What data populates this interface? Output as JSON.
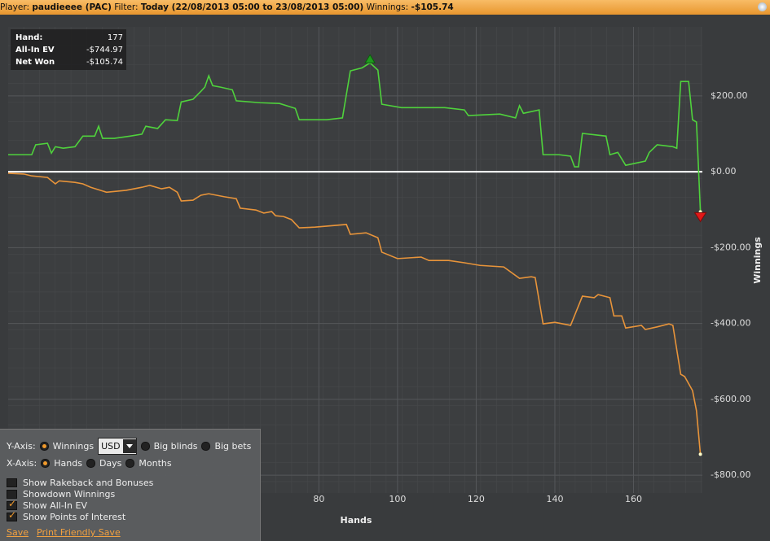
{
  "header": {
    "player_label": "Player:",
    "player": "paudieeee (PAC)",
    "filter_label": "Filter:",
    "filter": "Today (22/08/2013 05:00 to 23/08/2013 05:00)",
    "winnings_label": "Winnings:",
    "winnings": "-$105.74"
  },
  "info_box": {
    "hand_label": "Hand:",
    "hand": "177",
    "all_in_ev": "-$744.97",
    "net_won": "-$105.74"
  },
  "chart_data": {
    "type": "line",
    "x_label": "Hands",
    "y_label": "Winnings",
    "grid": true,
    "xlim": [
      1,
      177.5
    ],
    "xticks": [
      80,
      100,
      120,
      140,
      160
    ],
    "ylim": [
      -847,
      382
    ],
    "yticks": [
      {
        "value": 200,
        "label": "$200.00"
      },
      {
        "value": 0,
        "label": "$0.00"
      },
      {
        "value": -200,
        "label": "-$200.00"
      },
      {
        "value": -400,
        "label": "-$400.00"
      },
      {
        "value": -600,
        "label": "-$600.00"
      },
      {
        "value": -800,
        "label": "-$800.00"
      }
    ],
    "series": [
      {
        "name": "Net Won",
        "color": "#4fd23c",
        "x": [
          1,
          7,
          8,
          11,
          12,
          13,
          15,
          18,
          20,
          23,
          24,
          25,
          28,
          32,
          35,
          36,
          39,
          41,
          44,
          45,
          48,
          50,
          51,
          52,
          53,
          55,
          58,
          59,
          65,
          70,
          74,
          75,
          82,
          86,
          88,
          91,
          93,
          95,
          96,
          101,
          112,
          117,
          118,
          126,
          130,
          131,
          132,
          136,
          137,
          141,
          144,
          145,
          146,
          147,
          153,
          154,
          156,
          158,
          163,
          164,
          166,
          170,
          171,
          172,
          174,
          175,
          176,
          177
        ],
        "values": [
          45,
          45,
          71,
          75,
          49,
          66,
          62,
          66,
          94,
          94,
          120,
          88,
          88,
          94,
          99,
          120,
          114,
          137,
          135,
          184,
          191,
          212,
          223,
          253,
          227,
          223,
          216,
          187,
          182,
          180,
          167,
          137,
          137,
          142,
          266,
          274,
          287,
          268,
          178,
          169,
          169,
          163,
          148,
          152,
          142,
          174,
          154,
          163,
          45,
          45,
          41,
          13,
          13,
          101,
          94,
          45,
          51,
          17,
          28,
          51,
          71,
          66,
          62,
          238,
          238,
          137,
          131,
          -105.74
        ]
      },
      {
        "name": "All-In EV",
        "color": "#e8943a",
        "x": [
          1,
          5,
          7,
          11,
          13,
          14,
          18,
          20,
          22,
          26,
          31,
          35,
          37,
          40,
          42,
          44,
          45,
          48,
          50,
          52,
          56,
          59,
          60,
          64,
          66,
          68,
          69,
          71,
          73,
          75,
          79,
          87,
          88,
          92,
          95,
          96,
          100,
          106,
          108,
          113,
          117,
          121,
          127,
          131,
          134,
          135,
          137,
          140,
          144,
          147,
          150,
          151,
          154,
          155,
          157,
          158,
          162,
          163,
          166,
          169,
          170,
          172,
          173,
          175,
          176,
          177
        ],
        "values": [
          -4,
          -6,
          -11,
          -15,
          -32,
          -24,
          -28,
          -32,
          -41,
          -54,
          -49,
          -41,
          -36,
          -45,
          -41,
          -54,
          -77,
          -75,
          -62,
          -58,
          -66,
          -71,
          -96,
          -101,
          -109,
          -105,
          -116,
          -118,
          -126,
          -148,
          -146,
          -139,
          -165,
          -161,
          -174,
          -212,
          -229,
          -225,
          -234,
          -234,
          -240,
          -247,
          -251,
          -281,
          -277,
          -279,
          -401,
          -397,
          -405,
          -328,
          -332,
          -324,
          -332,
          -380,
          -380,
          -412,
          -405,
          -416,
          -409,
          -401,
          -405,
          -534,
          -540,
          -577,
          -630,
          -744.97
        ]
      }
    ]
  },
  "controls": {
    "y_axis": {
      "label": "Y-Axis:",
      "currency": "USD",
      "options": [
        {
          "text": "Winnings",
          "selected": true
        },
        {
          "text": "Big blinds",
          "selected": false
        },
        {
          "text": "Big bets",
          "selected": false
        }
      ]
    },
    "x_axis": {
      "label": "X-Axis:",
      "options": [
        {
          "text": "Hands",
          "selected": true
        },
        {
          "text": "Days",
          "selected": false
        },
        {
          "text": "Months",
          "selected": false
        }
      ]
    },
    "checkboxes": [
      {
        "text": "Show Rakeback and Bonuses",
        "checked": false
      },
      {
        "text": "Showdown Winnings",
        "checked": false
      },
      {
        "text": "Show All-In EV",
        "checked": true
      },
      {
        "text": "Show Points of Interest",
        "checked": true
      }
    ],
    "links": [
      "Save",
      "Print Friendly Save"
    ]
  }
}
